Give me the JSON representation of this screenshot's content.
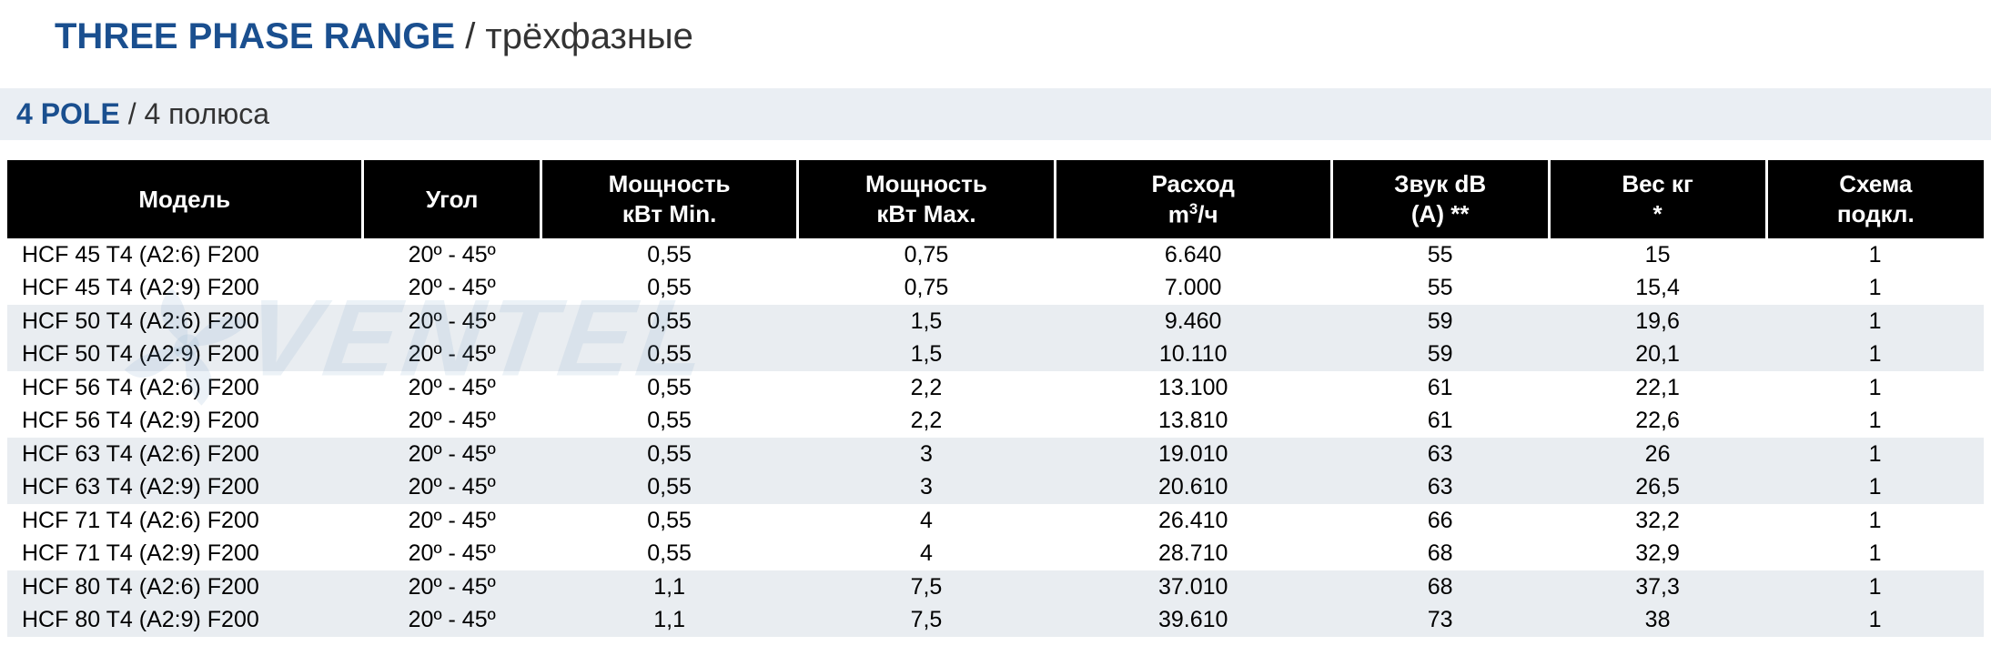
{
  "title": {
    "main_en": "THREE PHASE RANGE",
    "main_ru": "трёхфазные"
  },
  "subtitle": {
    "pole_en": "4 POLE",
    "pole_ru": "4 полюса"
  },
  "watermark_text": "VENTEL",
  "columns": [
    {
      "key": "model",
      "label": "Модель",
      "width": "18%"
    },
    {
      "key": "angle",
      "label": "Угол",
      "width": "9%"
    },
    {
      "key": "pwr_min",
      "label": "Мощность\nкВт Min.",
      "width": "13%"
    },
    {
      "key": "pwr_max",
      "label": "Мощность\nкВт Max.",
      "width": "13%"
    },
    {
      "key": "flow",
      "label": "Расход\nm³/ч",
      "width": "14%"
    },
    {
      "key": "sound",
      "label": "Звук dB\n(A) **",
      "width": "11%"
    },
    {
      "key": "weight",
      "label": "Вес кг\n*",
      "width": "11%"
    },
    {
      "key": "scheme",
      "label": "Схема\nподкл.",
      "width": "11%"
    }
  ],
  "angle_value": "20º - 45º",
  "rows": [
    {
      "band": 0,
      "model": "HCF 45 T4 (A2:6) F200",
      "pwr_min": "0,55",
      "pwr_max": "0,75",
      "flow": "6.640",
      "sound": "55",
      "weight": "15",
      "scheme": "1"
    },
    {
      "band": 0,
      "model": "HCF 45 T4 (A2:9) F200",
      "pwr_min": "0,55",
      "pwr_max": "0,75",
      "flow": "7.000",
      "sound": "55",
      "weight": "15,4",
      "scheme": "1"
    },
    {
      "band": 1,
      "model": "HCF 50 T4 (A2:6) F200",
      "pwr_min": "0,55",
      "pwr_max": "1,5",
      "flow": "9.460",
      "sound": "59",
      "weight": "19,6",
      "scheme": "1"
    },
    {
      "band": 1,
      "model": "HCF 50 T4 (A2:9) F200",
      "pwr_min": "0,55",
      "pwr_max": "1,5",
      "flow": "10.110",
      "sound": "59",
      "weight": "20,1",
      "scheme": "1"
    },
    {
      "band": 0,
      "model": "HCF 56 T4 (A2:6) F200",
      "pwr_min": "0,55",
      "pwr_max": "2,2",
      "flow": "13.100",
      "sound": "61",
      "weight": "22,1",
      "scheme": "1"
    },
    {
      "band": 0,
      "model": "HCF 56 T4 (A2:9) F200",
      "pwr_min": "0,55",
      "pwr_max": "2,2",
      "flow": "13.810",
      "sound": "61",
      "weight": "22,6",
      "scheme": "1"
    },
    {
      "band": 1,
      "model": "HCF 63 T4 (A2:6) F200",
      "pwr_min": "0,55",
      "pwr_max": "3",
      "flow": "19.010",
      "sound": "63",
      "weight": "26",
      "scheme": "1"
    },
    {
      "band": 1,
      "model": "HCF 63 T4 (A2:9) F200",
      "pwr_min": "0,55",
      "pwr_max": "3",
      "flow": "20.610",
      "sound": "63",
      "weight": "26,5",
      "scheme": "1"
    },
    {
      "band": 0,
      "model": "HCF 71 T4 (A2:6) F200",
      "pwr_min": "0,55",
      "pwr_max": "4",
      "flow": "26.410",
      "sound": "66",
      "weight": "32,2",
      "scheme": "1"
    },
    {
      "band": 0,
      "model": "HCF 71 T4 (A2:9) F200",
      "pwr_min": "0,55",
      "pwr_max": "4",
      "flow": "28.710",
      "sound": "68",
      "weight": "32,9",
      "scheme": "1"
    },
    {
      "band": 1,
      "model": "HCF 80 T4 (A2:6) F200",
      "pwr_min": "1,1",
      "pwr_max": "7,5",
      "flow": "37.010",
      "sound": "68",
      "weight": "37,3",
      "scheme": "1"
    },
    {
      "band": 1,
      "model": "HCF 80 T4 (A2:9) F200",
      "pwr_min": "1,1",
      "pwr_max": "7,5",
      "flow": "39.610",
      "sound": "73",
      "weight": "38",
      "scheme": "1"
    }
  ],
  "colors": {
    "brand_blue": "#1a4f8f",
    "band_grey": "#e9edf1",
    "header_bg": "#000000",
    "header_fg": "#ffffff",
    "body_text": "#000000",
    "page_bg": "#ffffff"
  },
  "font_sizes": {
    "title": 40,
    "subtitle": 32,
    "th": 26,
    "td": 25
  }
}
